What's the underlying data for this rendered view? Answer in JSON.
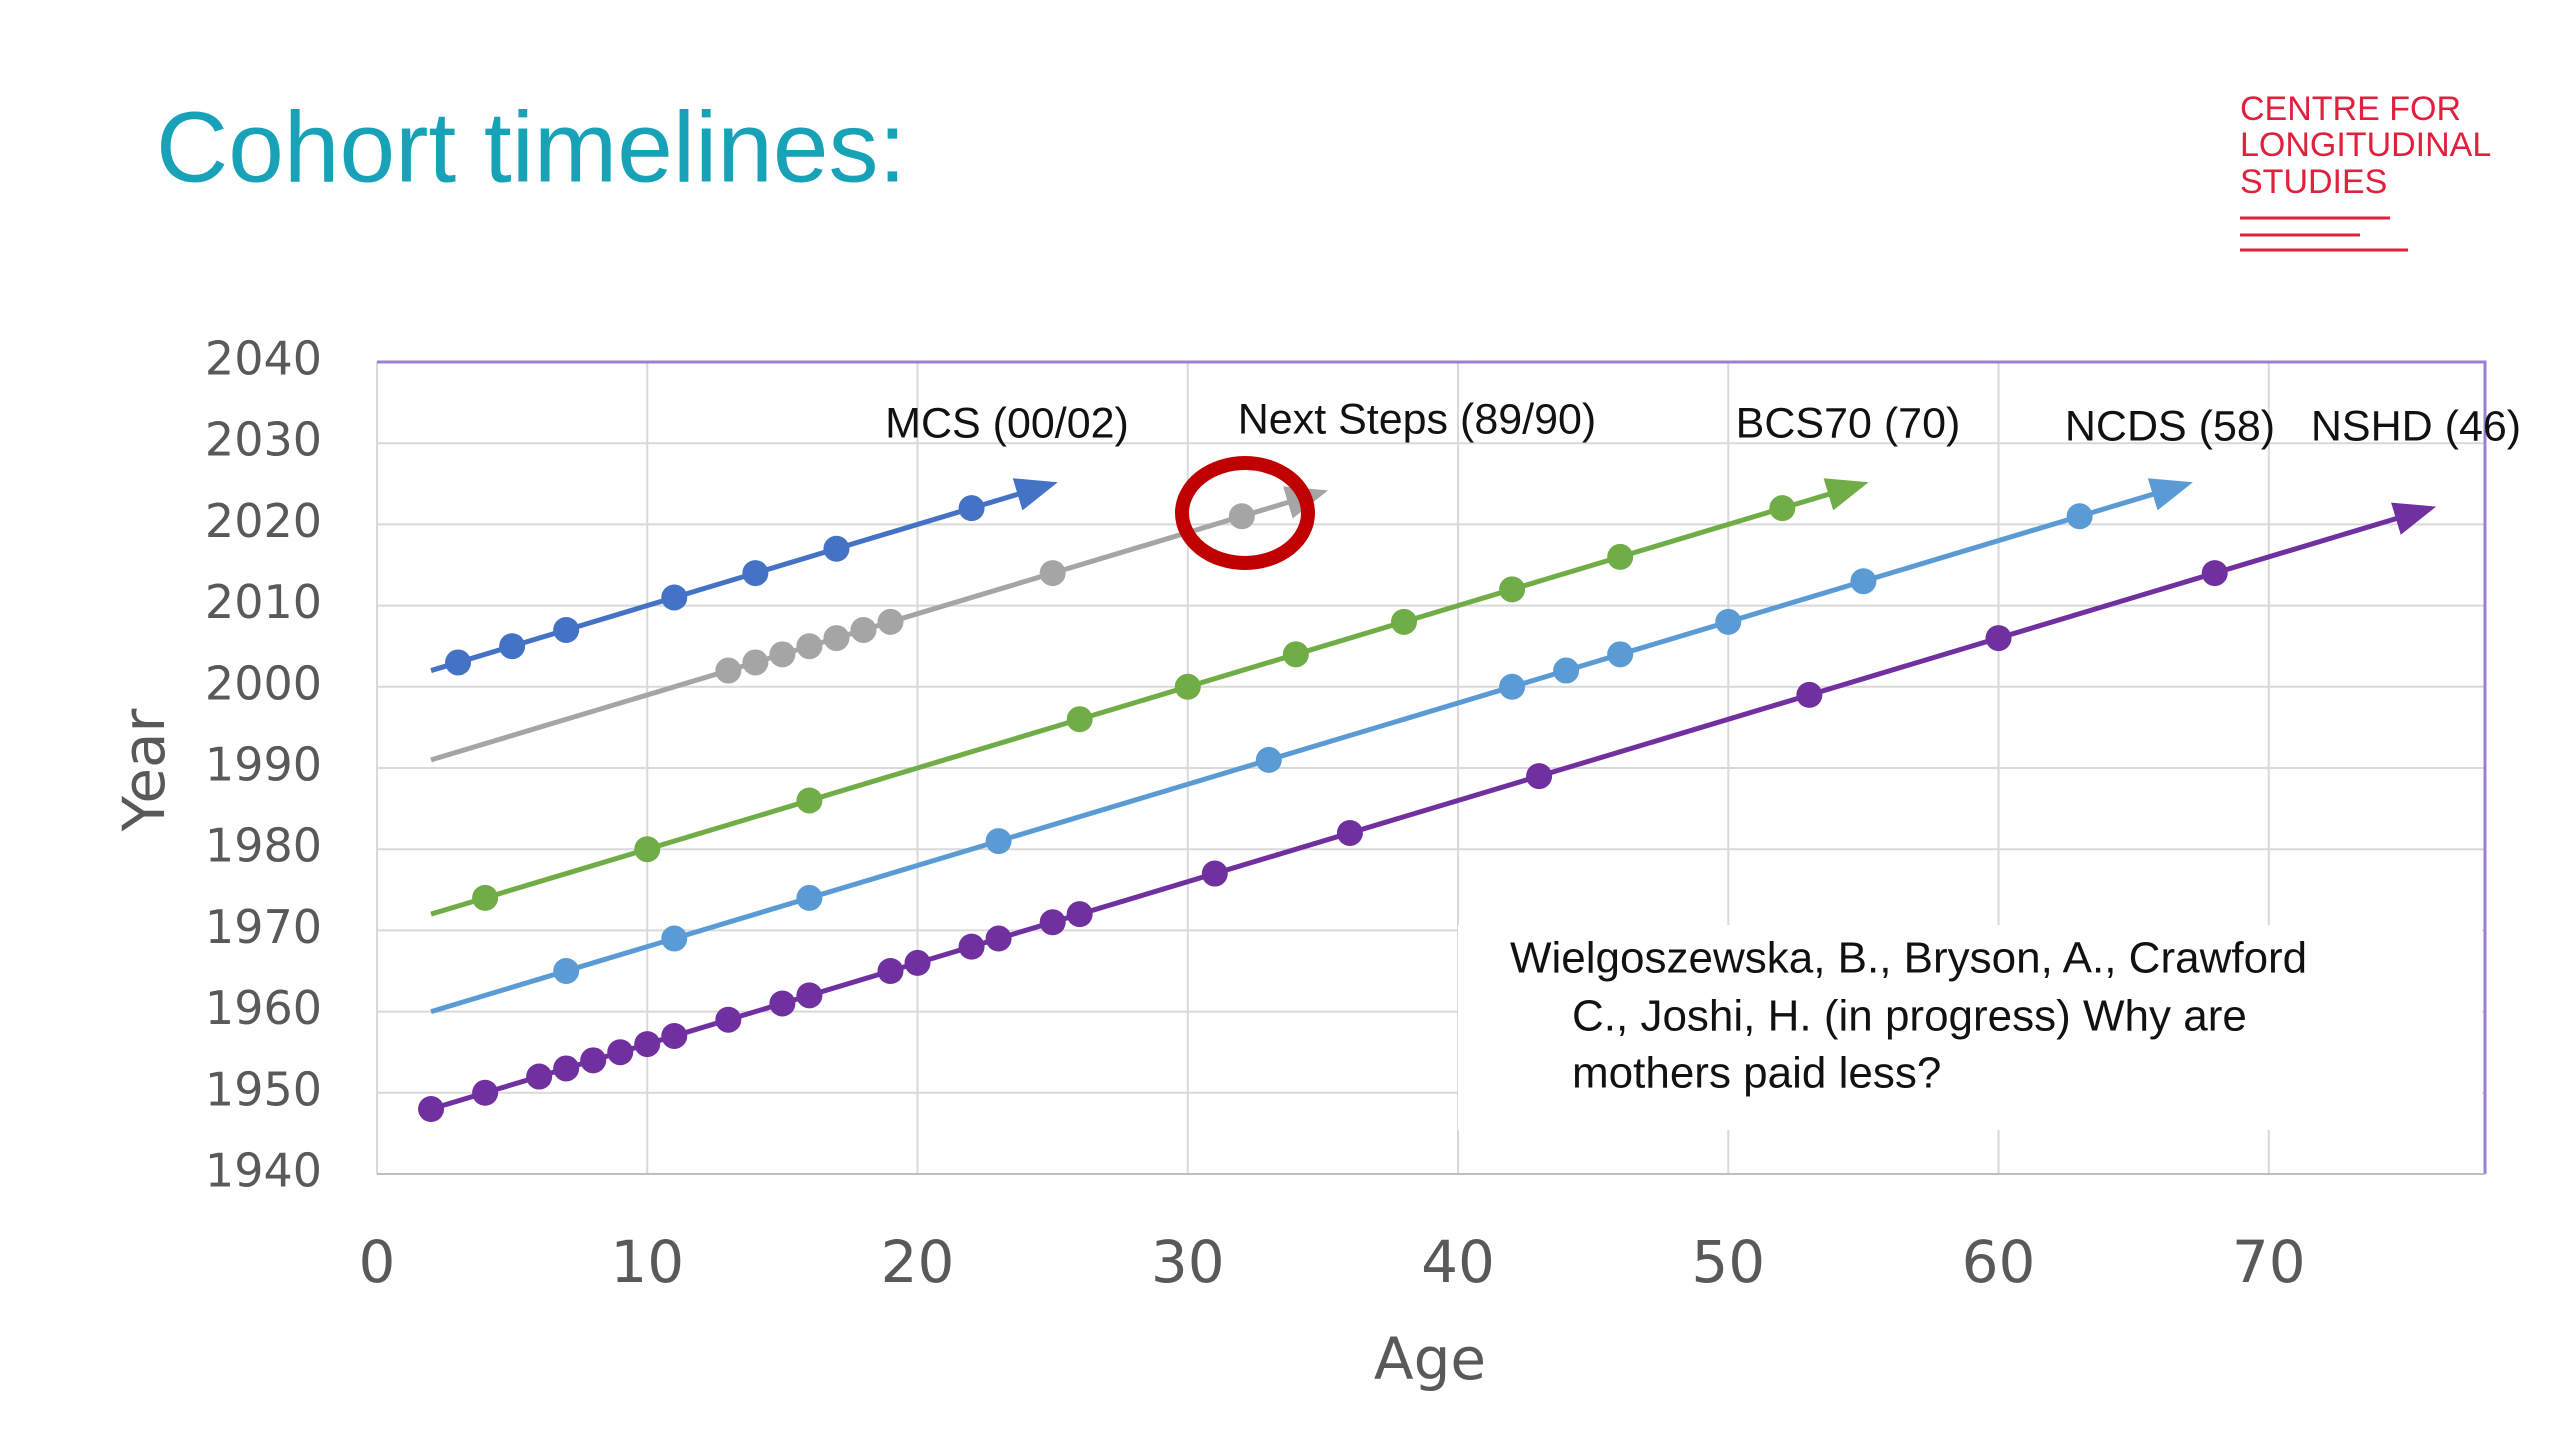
{
  "logo": {
    "lines": [
      "CENTRE FOR",
      "LONGITUDINAL",
      "STUDIES"
    ]
  },
  "chart_data": {
    "type": "line",
    "title": "Cohort timelines:",
    "x_label": "Age",
    "y_label": "Year",
    "xlim": [
      0,
      78
    ],
    "xticks": [
      0,
      10,
      20,
      30,
      40,
      50,
      60,
      70
    ],
    "ylim": [
      1940,
      2040
    ],
    "yticks": [
      1940,
      1950,
      1960,
      1970,
      1980,
      1990,
      2000,
      2010,
      2020,
      2030,
      2040
    ],
    "grid": true,
    "annotations": [
      "Wielgoszewska, B., Bryson, A., Crawford",
      "C., Joshi, H. (in progress) Why are",
      "mothers paid less?"
    ],
    "series": [
      {
        "name": "MCS (00/02)",
        "color": "#4472c4",
        "x": [
          3,
          5,
          7,
          11,
          14,
          17,
          22
        ],
        "values": [
          2003,
          2005,
          2007,
          2011,
          2014,
          2017,
          2022
        ],
        "line": {
          "x": [
            2,
            24
          ],
          "y": [
            2002,
            2024
          ]
        }
      },
      {
        "name": "Next Steps (89/90)",
        "color": "#a5a5a5",
        "x": [
          13,
          14,
          15,
          16,
          17,
          18,
          19,
          25,
          32
        ],
        "values": [
          2002,
          2003,
          2004,
          2005,
          2006,
          2007,
          2008,
          2014,
          2021
        ],
        "line": {
          "x": [
            2,
            34
          ],
          "y": [
            1991,
            2023
          ]
        }
      },
      {
        "name": "BCS70 (70)",
        "color": "#70ad47",
        "x": [
          4,
          10,
          16,
          26,
          30,
          34,
          38,
          42,
          46,
          52
        ],
        "values": [
          1974,
          1980,
          1986,
          1996,
          2000,
          2004,
          2008,
          2012,
          2016,
          2022
        ],
        "line": {
          "x": [
            2,
            54
          ],
          "y": [
            1972,
            2024
          ]
        }
      },
      {
        "name": "NCDS (58)",
        "color": "#5b9bd5",
        "x": [
          7,
          11,
          16,
          23,
          33,
          42,
          44,
          46,
          50,
          55,
          63
        ],
        "values": [
          1965,
          1969,
          1974,
          1981,
          1991,
          2000,
          2002,
          2004,
          2008,
          2013,
          2021
        ],
        "line": {
          "x": [
            2,
            66
          ],
          "y": [
            1960,
            2024
          ]
        }
      },
      {
        "name": "NSHD (46)",
        "color": "#7030a0",
        "x": [
          2,
          4,
          6,
          7,
          8,
          9,
          10,
          11,
          13,
          15,
          16,
          19,
          20,
          22,
          23,
          25,
          26,
          31,
          36,
          43,
          53,
          60,
          68
        ],
        "values": [
          1948,
          1950,
          1952,
          1953,
          1954,
          1955,
          1956,
          1957,
          1959,
          1961,
          1962,
          1965,
          1966,
          1968,
          1969,
          1971,
          1972,
          1977,
          1982,
          1989,
          1999,
          2006,
          2014
        ],
        "line": {
          "x": [
            2,
            75
          ],
          "y": [
            1948,
            2021
          ]
        }
      }
    ]
  }
}
